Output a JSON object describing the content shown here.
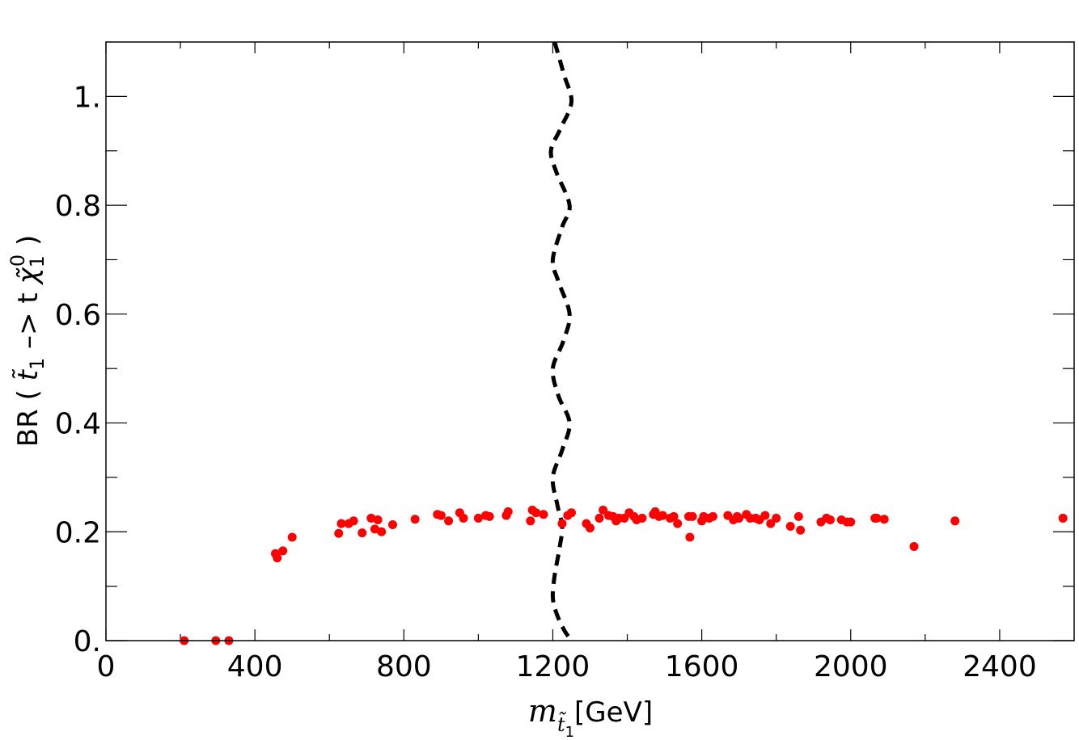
{
  "chart_data": {
    "type": "scatter",
    "title": "",
    "xlabel": {
      "var": "m",
      "sub": "t̃",
      "subsub": "1",
      "unit": "[GeV]"
    },
    "ylabel": {
      "prefix": "BR ( ",
      "particle": "t̃",
      "particle_sub": "1",
      "arrow": " –> t ",
      "chi": "χ̃",
      "chi_sub": "1",
      "chi_sup": "0",
      "suffix": " )"
    },
    "xlim": [
      0,
      2600
    ],
    "ylim": [
      0,
      1.1
    ],
    "x_major_ticks": [
      0,
      400,
      800,
      1200,
      1600,
      2000,
      2400
    ],
    "x_major_labels": [
      "0",
      "400",
      "800",
      "1200",
      "1600",
      "2000",
      "2400"
    ],
    "x_minor_ticks": [
      200,
      600,
      1000,
      1400,
      1800,
      2200
    ],
    "y_major_ticks": [
      0,
      0.2,
      0.4,
      0.6,
      0.8,
      1.0
    ],
    "y_major_labels": [
      "0.",
      "0.2",
      "0.4",
      "0.6",
      "0.8",
      "1."
    ],
    "y_minor_ticks": [
      0.1,
      0.3,
      0.5,
      0.7,
      0.9
    ],
    "grid": false,
    "legend": "none",
    "series": [
      {
        "kind": "scatter",
        "color": "#ff0000",
        "points": [
          [
            210,
            0.0
          ],
          [
            295,
            0.0
          ],
          [
            330,
            0.0
          ],
          [
            455,
            0.16
          ],
          [
            460,
            0.152
          ],
          [
            475,
            0.165
          ],
          [
            500,
            0.19
          ],
          [
            625,
            0.197
          ],
          [
            632,
            0.215
          ],
          [
            652,
            0.215
          ],
          [
            665,
            0.22
          ],
          [
            688,
            0.198
          ],
          [
            712,
            0.225
          ],
          [
            722,
            0.205
          ],
          [
            730,
            0.222
          ],
          [
            740,
            0.2
          ],
          [
            770,
            0.213
          ],
          [
            830,
            0.223
          ],
          [
            890,
            0.232
          ],
          [
            900,
            0.23
          ],
          [
            920,
            0.22
          ],
          [
            950,
            0.235
          ],
          [
            960,
            0.225
          ],
          [
            1000,
            0.225
          ],
          [
            1020,
            0.23
          ],
          [
            1030,
            0.228
          ],
          [
            1075,
            0.23
          ],
          [
            1080,
            0.237
          ],
          [
            1140,
            0.22
          ],
          [
            1145,
            0.24
          ],
          [
            1155,
            0.235
          ],
          [
            1175,
            0.232
          ],
          [
            1225,
            0.215
          ],
          [
            1240,
            0.23
          ],
          [
            1250,
            0.235
          ],
          [
            1290,
            0.215
          ],
          [
            1300,
            0.207
          ],
          [
            1325,
            0.225
          ],
          [
            1335,
            0.24
          ],
          [
            1350,
            0.23
          ],
          [
            1362,
            0.228
          ],
          [
            1370,
            0.22
          ],
          [
            1378,
            0.225
          ],
          [
            1392,
            0.225
          ],
          [
            1405,
            0.235
          ],
          [
            1418,
            0.228
          ],
          [
            1425,
            0.222
          ],
          [
            1440,
            0.225
          ],
          [
            1470,
            0.232
          ],
          [
            1475,
            0.237
          ],
          [
            1485,
            0.228
          ],
          [
            1495,
            0.23
          ],
          [
            1515,
            0.225
          ],
          [
            1525,
            0.228
          ],
          [
            1535,
            0.215
          ],
          [
            1565,
            0.228
          ],
          [
            1568,
            0.19
          ],
          [
            1575,
            0.228
          ],
          [
            1600,
            0.22
          ],
          [
            1605,
            0.228
          ],
          [
            1620,
            0.225
          ],
          [
            1630,
            0.228
          ],
          [
            1670,
            0.23
          ],
          [
            1685,
            0.222
          ],
          [
            1695,
            0.228
          ],
          [
            1700,
            0.225
          ],
          [
            1720,
            0.232
          ],
          [
            1730,
            0.225
          ],
          [
            1745,
            0.225
          ],
          [
            1755,
            0.222
          ],
          [
            1770,
            0.23
          ],
          [
            1785,
            0.215
          ],
          [
            1800,
            0.225
          ],
          [
            1838,
            0.21
          ],
          [
            1860,
            0.228
          ],
          [
            1865,
            0.203
          ],
          [
            1920,
            0.218
          ],
          [
            1935,
            0.225
          ],
          [
            1945,
            0.222
          ],
          [
            1975,
            0.222
          ],
          [
            1990,
            0.218
          ],
          [
            2000,
            0.218
          ],
          [
            2065,
            0.225
          ],
          [
            2070,
            0.225
          ],
          [
            2090,
            0.223
          ],
          [
            2170,
            0.173
          ],
          [
            2280,
            0.22
          ],
          [
            2570,
            0.225
          ]
        ]
      },
      {
        "kind": "line",
        "style": "dashed",
        "color": "#000000",
        "points": [
          [
            1205,
            1.1
          ],
          [
            1230,
            1.04
          ],
          [
            1250,
            0.99
          ],
          [
            1220,
            0.94
          ],
          [
            1195,
            0.9
          ],
          [
            1210,
            0.86
          ],
          [
            1245,
            0.8
          ],
          [
            1225,
            0.76
          ],
          [
            1200,
            0.7
          ],
          [
            1215,
            0.66
          ],
          [
            1245,
            0.6
          ],
          [
            1228,
            0.55
          ],
          [
            1200,
            0.5
          ],
          [
            1215,
            0.45
          ],
          [
            1245,
            0.4
          ],
          [
            1225,
            0.35
          ],
          [
            1200,
            0.3
          ],
          [
            1212,
            0.25
          ],
          [
            1225,
            0.21
          ],
          [
            1218,
            0.17
          ],
          [
            1205,
            0.12
          ],
          [
            1200,
            0.08
          ],
          [
            1210,
            0.05
          ],
          [
            1230,
            0.02
          ],
          [
            1250,
            0.0
          ]
        ]
      }
    ]
  }
}
